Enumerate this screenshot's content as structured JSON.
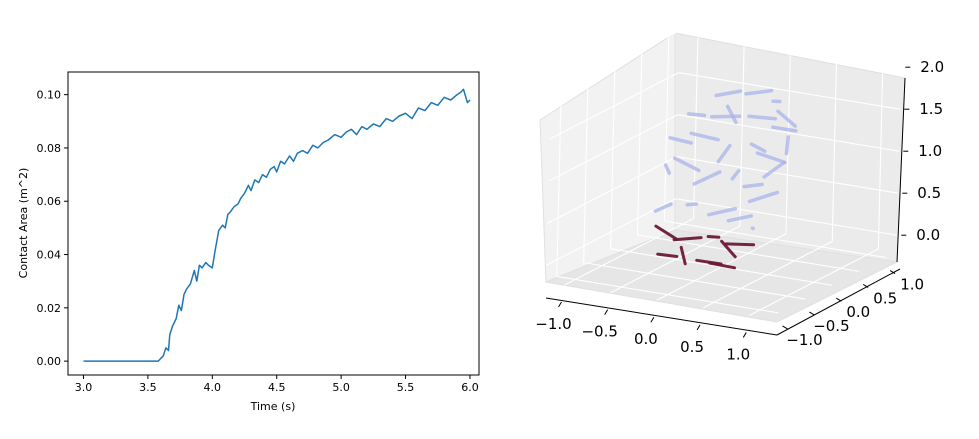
{
  "figure": {
    "panels": [
      "contact-area-plot",
      "3d-rod-plot"
    ]
  },
  "chart_data": [
    {
      "type": "line",
      "title": "",
      "xlabel": "Time (s)",
      "ylabel": "Contact Area (m^2)",
      "xlim": [
        2.88,
        6.07
      ],
      "ylim": [
        -0.0052,
        0.1085
      ],
      "xticks": [
        3.0,
        3.5,
        4.0,
        4.5,
        5.0,
        5.5,
        6.0
      ],
      "xtick_labels": [
        "3.0",
        "3.5",
        "4.0",
        "4.5",
        "5.0",
        "5.5",
        "6.0"
      ],
      "yticks": [
        0.0,
        0.02,
        0.04,
        0.06,
        0.08,
        0.1
      ],
      "ytick_labels": [
        "0.00",
        "0.02",
        "0.04",
        "0.06",
        "0.08",
        "0.10"
      ],
      "grid": false,
      "color": "#1f77b4",
      "series": [
        {
          "x": [
            3.0,
            3.58,
            3.62,
            3.64,
            3.66,
            3.67,
            3.69,
            3.72,
            3.74,
            3.76,
            3.78,
            3.8,
            3.83,
            3.86,
            3.88,
            3.9,
            3.92,
            3.95,
            3.97,
            4.0,
            4.02,
            4.05,
            4.08,
            4.1,
            4.12,
            4.14,
            4.17,
            4.2,
            4.22,
            4.25,
            4.28,
            4.3,
            4.33,
            4.36,
            4.39,
            4.42,
            4.45,
            4.48,
            4.5,
            4.53,
            4.56,
            4.6,
            4.63,
            4.66,
            4.7,
            4.74,
            4.78,
            4.82,
            4.86,
            4.9,
            4.95,
            5.0,
            5.04,
            5.08,
            5.12,
            5.16,
            5.2,
            5.25,
            5.3,
            5.35,
            5.4,
            5.45,
            5.5,
            5.55,
            5.6,
            5.65,
            5.7,
            5.75,
            5.8,
            5.85,
            5.9,
            5.93,
            5.95,
            5.98,
            6.0
          ],
          "y": [
            0.0,
            0.0,
            0.002,
            0.005,
            0.004,
            0.01,
            0.013,
            0.016,
            0.021,
            0.019,
            0.025,
            0.027,
            0.029,
            0.034,
            0.03,
            0.036,
            0.035,
            0.037,
            0.036,
            0.035,
            0.041,
            0.049,
            0.051,
            0.05,
            0.055,
            0.056,
            0.058,
            0.059,
            0.061,
            0.063,
            0.066,
            0.064,
            0.068,
            0.067,
            0.07,
            0.069,
            0.072,
            0.073,
            0.071,
            0.075,
            0.074,
            0.077,
            0.075,
            0.078,
            0.079,
            0.078,
            0.081,
            0.08,
            0.082,
            0.083,
            0.085,
            0.084,
            0.086,
            0.087,
            0.085,
            0.088,
            0.087,
            0.089,
            0.088,
            0.091,
            0.09,
            0.092,
            0.093,
            0.091,
            0.095,
            0.094,
            0.097,
            0.096,
            0.099,
            0.098,
            0.1,
            0.101,
            0.102,
            0.097,
            0.098
          ]
        }
      ]
    },
    {
      "type": "scatter",
      "title": "",
      "xlabel": "",
      "ylabel": "",
      "zlabel": "",
      "xlim": [
        -1.2,
        1.2
      ],
      "ylim": [
        -1.2,
        1.2
      ],
      "zlim": [
        -0.2,
        2.2
      ],
      "xticks": [
        -1.0,
        -0.5,
        0.0,
        0.5,
        1.0
      ],
      "xtick_labels": [
        "−1.0",
        "−0.5",
        "0.0",
        "0.5",
        "1.0"
      ],
      "yticks": [
        -1.0,
        -0.5,
        0.0,
        0.5,
        1.0
      ],
      "ytick_labels": [
        "−1.0",
        "−0.5",
        "0.0",
        "0.5",
        "1.0"
      ],
      "zticks": [
        0.0,
        0.5,
        1.0,
        1.5,
        2.0
      ],
      "ztick_labels": [
        "0.0",
        "0.5",
        "1.0",
        "1.5",
        "2.0"
      ],
      "grid": true,
      "colors": {
        "upper": "#aab3ea",
        "lower": "#6e1a3a"
      },
      "series": [
        {
          "x": [
            -0.2,
            0.1,
            0.35,
            0.55,
            -0.05,
            -0.45,
            -0.1,
            0.2,
            0.5,
            0.65,
            -0.5,
            -0.3,
            0.0,
            0.25,
            0.45,
            0.6,
            -0.55,
            -0.4,
            -0.15,
            0.1,
            0.35,
            0.55,
            -0.5,
            -0.25,
            0.05,
            0.3,
            0.5,
            -0.4,
            -0.2,
            0.05,
            0.3,
            0.45,
            -0.3,
            -0.1,
            0.15,
            0.35
          ],
          "y": [
            0.4,
            0.45,
            0.35,
            0.2,
            0.1,
            0.25,
            0.3,
            0.35,
            0.25,
            0.05,
            0.05,
            0.15,
            0.0,
            0.2,
            0.1,
            -0.1,
            -0.1,
            0.0,
            -0.05,
            0.05,
            -0.05,
            -0.2,
            -0.25,
            -0.15,
            -0.1,
            -0.2,
            -0.3,
            -0.35,
            -0.3,
            -0.25,
            -0.4,
            -0.45,
            -0.5,
            -0.55,
            -0.5,
            -0.6
          ],
          "z": [
            1.7,
            1.75,
            1.72,
            1.6,
            1.55,
            1.45,
            1.5,
            1.5,
            1.45,
            1.35,
            1.2,
            1.25,
            1.15,
            1.2,
            1.15,
            1.1,
            0.9,
            0.95,
            0.85,
            0.9,
            0.85,
            0.8,
            0.5,
            0.55,
            0.5,
            0.5,
            0.45,
            0.25,
            0.2,
            0.25,
            0.2,
            0.3,
            0.05,
            0.1,
            0.05,
            0.08
          ]
        }
      ]
    }
  ]
}
